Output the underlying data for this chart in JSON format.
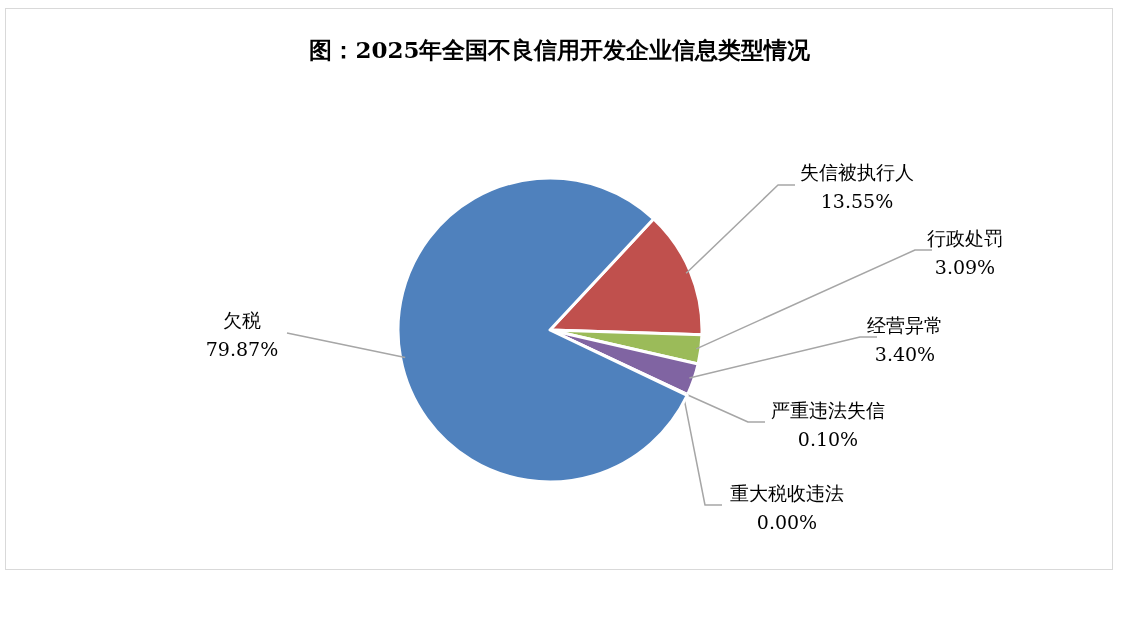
{
  "chart_data": {
    "type": "pie",
    "title": "图：2025年全国不良信用开发企业信息类型情况",
    "categories": [
      "失信被执行人",
      "行政处罚",
      "经营异常",
      "严重违法失信",
      "重大税收违法",
      "欠税"
    ],
    "values": [
      13.55,
      3.09,
      3.4,
      0.1,
      0.0,
      79.87
    ],
    "colors": [
      "#c0504d",
      "#9bbb59",
      "#8064a2",
      "#4bacc6",
      "#f79646",
      "#4f81bd"
    ],
    "value_labels": [
      "13.55%",
      "3.09%",
      "3.40%",
      "0.10%",
      "0.00%",
      "79.87%"
    ]
  }
}
